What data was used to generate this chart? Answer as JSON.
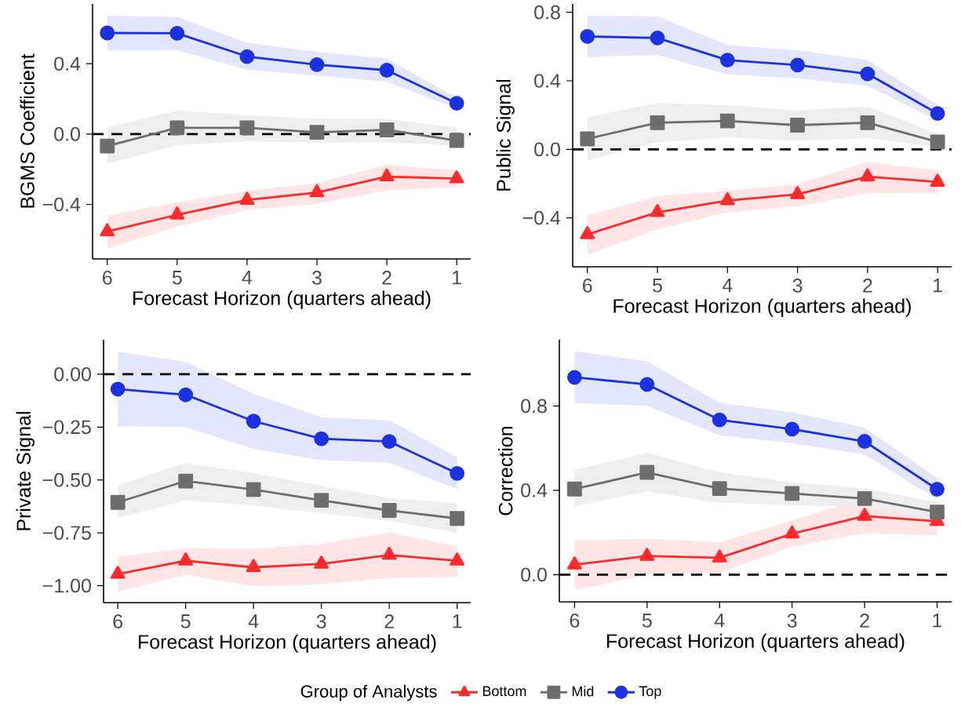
{
  "chart_data": [
    {
      "type": "line",
      "xlabel": "Forecast Horizon (quarters ahead)",
      "ylabel": "BGMS Coefficient",
      "categories": [
        "6",
        "5",
        "4",
        "3",
        "2",
        "1"
      ],
      "ylim": [
        -0.71,
        0.74
      ],
      "yticks": [
        {
          "value": -0.4,
          "label": "−0.4"
        },
        {
          "value": 0,
          "label": "0.0"
        },
        {
          "value": 0.4,
          "label": "0.4"
        }
      ],
      "line_style": "solid",
      "grid": false,
      "ref_lines": [
        {
          "axis": "y",
          "value": 0,
          "color": "#000000",
          "line_style": "dashed"
        }
      ],
      "series": [
        {
          "color": "#ff2a2a",
          "marker": "triangle",
          "values": [
            -0.554,
            -0.459,
            -0.375,
            -0.332,
            -0.242,
            -0.253
          ],
          "lower": [
            -0.651,
            -0.527,
            -0.431,
            -0.397,
            -0.32,
            -0.303
          ],
          "upper": [
            -0.464,
            -0.388,
            -0.324,
            -0.278,
            -0.176,
            -0.205
          ]
        },
        {
          "color": "#6e6e6e",
          "marker": "square",
          "values": [
            -0.068,
            0.036,
            0.036,
            0.01,
            0.024,
            -0.037
          ],
          "lower": [
            -0.168,
            -0.063,
            -0.041,
            -0.049,
            -0.046,
            -0.066
          ],
          "upper": [
            0.036,
            0.134,
            0.107,
            0.086,
            0.086,
            0.036
          ]
        },
        {
          "color": "#1a32e0",
          "marker": "circle",
          "values": [
            0.575,
            0.573,
            0.441,
            0.395,
            0.363,
            0.175
          ],
          "lower": [
            0.476,
            0.476,
            0.366,
            0.332,
            0.298,
            0.146
          ],
          "upper": [
            0.673,
            0.666,
            0.519,
            0.468,
            0.429,
            0.205
          ]
        }
      ]
    },
    {
      "type": "line",
      "xlabel": "Forecast Horizon (quarters ahead)",
      "ylabel": "Public Signal",
      "categories": [
        "6",
        "5",
        "4",
        "3",
        "2",
        "1"
      ],
      "ylim": [
        -0.686,
        0.849
      ],
      "yticks": [
        {
          "value": -0.4,
          "label": "−0.4"
        },
        {
          "value": 0,
          "label": "0.0"
        },
        {
          "value": 0.4,
          "label": "0.4"
        },
        {
          "value": 0.8,
          "label": "0.8"
        }
      ],
      "line_style": "solid",
      "grid": false,
      "ref_lines": [
        {
          "axis": "y",
          "value": 0,
          "color": "#000000",
          "line_style": "dashed"
        }
      ],
      "series": [
        {
          "color": "#ff2a2a",
          "marker": "triangle",
          "values": [
            -0.497,
            -0.368,
            -0.299,
            -0.263,
            -0.16,
            -0.191
          ],
          "lower": [
            -0.616,
            -0.467,
            -0.368,
            -0.332,
            -0.256,
            -0.256
          ],
          "upper": [
            -0.386,
            -0.274,
            -0.241,
            -0.205,
            -0.074,
            -0.124
          ]
        },
        {
          "color": "#6e6e6e",
          "marker": "square",
          "values": [
            0.061,
            0.155,
            0.166,
            0.141,
            0.155,
            0.043
          ],
          "lower": [
            -0.065,
            0.041,
            0.07,
            0.05,
            0.065,
            0.014
          ],
          "upper": [
            0.186,
            0.27,
            0.259,
            0.227,
            0.25,
            0.092
          ]
        },
        {
          "color": "#1a32e0",
          "marker": "circle",
          "values": [
            0.659,
            0.65,
            0.521,
            0.492,
            0.441,
            0.209
          ],
          "lower": [
            0.539,
            0.551,
            0.438,
            0.414,
            0.371,
            0.169
          ],
          "upper": [
            0.78,
            0.777,
            0.609,
            0.577,
            0.521,
            0.258
          ]
        }
      ]
    },
    {
      "type": "line",
      "xlabel": "Forecast Horizon (quarters ahead)",
      "ylabel": "Private Signal",
      "categories": [
        "6",
        "5",
        "4",
        "3",
        "2",
        "1"
      ],
      "ylim": [
        -1.08,
        0.163
      ],
      "yticks": [
        {
          "value": -1,
          "label": "−1.00"
        },
        {
          "value": -0.75,
          "label": "−0.75"
        },
        {
          "value": -0.5,
          "label": "−0.50"
        },
        {
          "value": -0.25,
          "label": "−0.25"
        },
        {
          "value": 0,
          "label": "0.00"
        }
      ],
      "line_style": "solid",
      "grid": false,
      "ref_lines": [
        {
          "axis": "y",
          "value": 0,
          "color": "#000000",
          "line_style": "dashed"
        }
      ],
      "series": [
        {
          "color": "#ff2a2a",
          "marker": "triangle",
          "values": [
            -0.945,
            -0.882,
            -0.913,
            -0.897,
            -0.855,
            -0.882
          ],
          "lower": [
            -1.028,
            -0.948,
            -1.003,
            -0.993,
            -0.964,
            -0.959
          ],
          "upper": [
            -0.862,
            -0.824,
            -0.826,
            -0.802,
            -0.749,
            -0.814
          ]
        },
        {
          "color": "#6e6e6e",
          "marker": "square",
          "values": [
            -0.606,
            -0.505,
            -0.545,
            -0.596,
            -0.644,
            -0.682
          ],
          "lower": [
            -0.679,
            -0.597,
            -0.621,
            -0.657,
            -0.693,
            -0.749
          ],
          "upper": [
            -0.526,
            -0.419,
            -0.468,
            -0.528,
            -0.586,
            -0.61
          ]
        },
        {
          "color": "#1a32e0",
          "marker": "circle",
          "values": [
            -0.07,
            -0.097,
            -0.222,
            -0.305,
            -0.318,
            -0.469
          ],
          "lower": [
            -0.247,
            -0.25,
            -0.353,
            -0.407,
            -0.419,
            -0.542
          ],
          "upper": [
            0.106,
            0.058,
            -0.092,
            -0.203,
            -0.218,
            -0.392
          ]
        }
      ]
    },
    {
      "type": "line",
      "xlabel": "Forecast Horizon (quarters ahead)",
      "ylabel": "Correction",
      "categories": [
        "6",
        "5",
        "4",
        "3",
        "2",
        "1"
      ],
      "ylim": [
        -0.129,
        1.114
      ],
      "yticks": [
        {
          "value": 0,
          "label": "0.0"
        },
        {
          "value": 0.4,
          "label": "0.4"
        },
        {
          "value": 0.8,
          "label": "0.8"
        }
      ],
      "line_style": "solid",
      "grid": false,
      "ref_lines": [
        {
          "axis": "y",
          "value": 0,
          "color": "#000000",
          "line_style": "dashed"
        }
      ],
      "legend": "bottom",
      "legend_title": "Group of Analysts",
      "series": [
        {
          "name": "Bottom",
          "color": "#ff2a2a",
          "marker": "triangle",
          "values": [
            0.047,
            0.088,
            0.08,
            0.194,
            0.278,
            0.253
          ],
          "lower": [
            -0.073,
            0.0,
            0.01,
            0.132,
            0.197,
            0.186
          ],
          "upper": [
            0.161,
            0.171,
            0.154,
            0.256,
            0.365,
            0.344
          ]
        },
        {
          "name": "Mid",
          "color": "#6e6e6e",
          "marker": "square",
          "values": [
            0.406,
            0.485,
            0.408,
            0.385,
            0.361,
            0.297
          ],
          "lower": [
            0.325,
            0.395,
            0.341,
            0.329,
            0.322,
            0.27
          ],
          "upper": [
            0.497,
            0.577,
            0.485,
            0.439,
            0.409,
            0.344
          ]
        },
        {
          "name": "Top",
          "color": "#1a32e0",
          "marker": "circle",
          "values": [
            0.936,
            0.902,
            0.734,
            0.69,
            0.632,
            0.405
          ],
          "lower": [
            0.814,
            0.8,
            0.661,
            0.624,
            0.57,
            0.358
          ],
          "upper": [
            1.06,
            1.012,
            0.814,
            0.77,
            0.697,
            0.458
          ]
        }
      ]
    }
  ]
}
